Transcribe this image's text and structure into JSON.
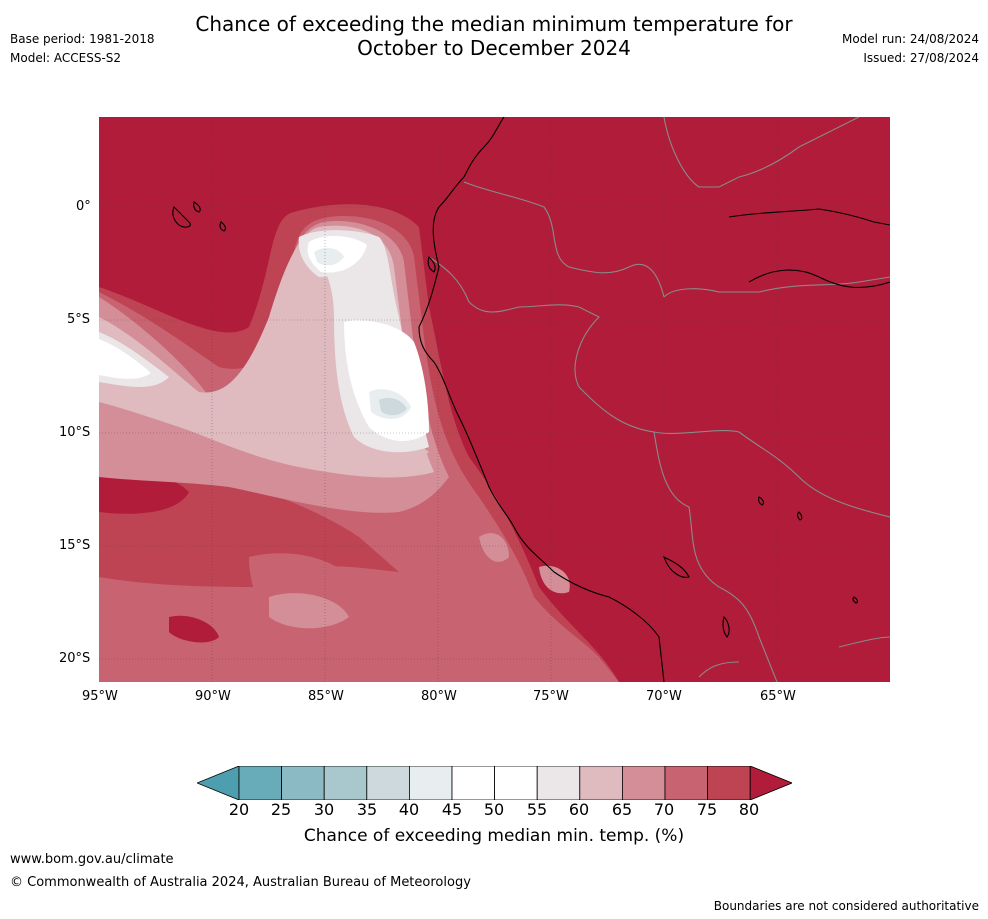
{
  "header": {
    "base_period": "Base period: 1981-2018",
    "model": "Model: ACCESS-S2",
    "model_run": "Model run: 24/08/2024",
    "issued": "Issued: 27/08/2024",
    "title_line1": "Chance of exceeding the median minimum temperature for",
    "title_line2": "October to December 2024"
  },
  "map": {
    "lat_labels": [
      "0°",
      "5°S",
      "10°S",
      "15°S",
      "20°S"
    ],
    "lon_labels": [
      "95°W",
      "90°W",
      "85°W",
      "80°W",
      "75°W",
      "70°W",
      "65°W"
    ],
    "background_color": "#b01c39",
    "coast_color": "#000000",
    "border_color": "#808080"
  },
  "colorbar": {
    "ticks": [
      "20",
      "25",
      "30",
      "35",
      "40",
      "45",
      "50",
      "55",
      "60",
      "65",
      "70",
      "75",
      "80"
    ],
    "colors": [
      "#4d9eae",
      "#69acb9",
      "#8bbac5",
      "#a9c8ce",
      "#cdd9dc",
      "#e8eef0",
      "#ffffff",
      "#ffffff",
      "#ebe6e8",
      "#dfbbc0",
      "#d48e98",
      "#c86372",
      "#be4453",
      "#b01c39"
    ],
    "title": "Chance of exceeding median min. temp. (%)"
  },
  "footer": {
    "url": "www.bom.gov.au/climate",
    "copyright": "© Commonwealth of Australia 2024, Australian Bureau of Meteorology",
    "disclaimer": "Boundaries are not considered authoritative"
  }
}
